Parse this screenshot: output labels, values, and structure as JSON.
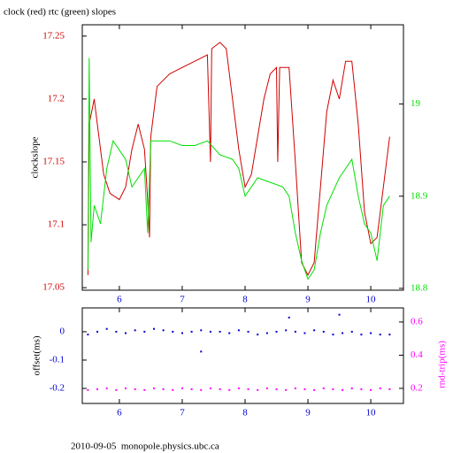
{
  "chart_data": [
    {
      "type": "line",
      "title": "clock (red) rtc (green) slopes",
      "ylabel": "clockslope",
      "xlim": [
        5.41,
        10.52
      ],
      "xticks": [
        6,
        7,
        8,
        9,
        10
      ],
      "ylim": [
        17.048,
        17.259
      ],
      "yticks": [
        17.05,
        17.1,
        17.15,
        17.2,
        17.25
      ],
      "y2lim": [
        18.798,
        19.086
      ],
      "y2ticks": [
        18.8,
        18.9,
        19
      ],
      "series": [
        {
          "name": "clock",
          "color": "#d00000",
          "x": [
            5.5,
            5.52,
            5.6,
            5.65,
            5.75,
            5.85,
            6.0,
            6.1,
            6.2,
            6.3,
            6.4,
            6.45,
            6.48,
            6.5,
            6.6,
            6.8,
            7.0,
            7.2,
            7.4,
            7.45,
            7.47,
            7.6,
            7.7,
            7.8,
            7.9,
            8.0,
            8.1,
            8.2,
            8.3,
            8.4,
            8.5,
            8.52,
            8.55,
            8.7,
            8.8,
            8.9,
            9.0,
            9.1,
            9.2,
            9.3,
            9.4,
            9.5,
            9.6,
            9.7,
            9.8,
            9.9,
            10.0,
            10.1,
            10.2,
            10.3
          ],
          "values": [
            17.06,
            17.18,
            17.2,
            17.18,
            17.14,
            17.125,
            17.12,
            17.13,
            17.16,
            17.18,
            17.16,
            17.12,
            17.09,
            17.17,
            17.21,
            17.22,
            17.225,
            17.23,
            17.235,
            17.15,
            17.24,
            17.245,
            17.24,
            17.2,
            17.16,
            17.13,
            17.14,
            17.17,
            17.2,
            17.22,
            17.225,
            17.15,
            17.225,
            17.225,
            17.15,
            17.07,
            17.06,
            17.07,
            17.13,
            17.19,
            17.215,
            17.2,
            17.23,
            17.23,
            17.18,
            17.11,
            17.085,
            17.09,
            17.13,
            17.17
          ]
        },
        {
          "name": "rtc",
          "color": "#00e000",
          "axis": "y2",
          "x": [
            5.5,
            5.52,
            5.55,
            5.6,
            5.7,
            5.8,
            5.9,
            6.0,
            6.1,
            6.2,
            6.3,
            6.4,
            6.45,
            6.5,
            6.6,
            6.8,
            7.0,
            7.2,
            7.4,
            7.6,
            7.8,
            7.9,
            8.0,
            8.1,
            8.2,
            8.4,
            8.6,
            8.7,
            8.8,
            8.9,
            9.0,
            9.1,
            9.2,
            9.3,
            9.5,
            9.6,
            9.7,
            9.8,
            9.9,
            10.0,
            10.1,
            10.2,
            10.3
          ],
          "values": [
            18.82,
            19.05,
            18.85,
            18.89,
            18.87,
            18.93,
            18.96,
            18.95,
            18.94,
            18.91,
            18.92,
            18.93,
            18.86,
            18.96,
            18.96,
            18.96,
            18.955,
            18.955,
            18.96,
            18.945,
            18.94,
            18.93,
            18.9,
            18.91,
            18.92,
            18.915,
            18.91,
            18.9,
            18.86,
            18.83,
            18.81,
            18.82,
            18.86,
            18.89,
            18.92,
            18.93,
            18.94,
            18.9,
            18.87,
            18.86,
            18.83,
            18.89,
            18.9
          ]
        }
      ]
    },
    {
      "type": "scatter",
      "ylabel": "offset(ms)",
      "y2label": "rnd-trip(ms)",
      "xlim": [
        5.41,
        10.52
      ],
      "xticks": [
        6,
        7,
        8,
        9,
        10
      ],
      "ylim": [
        -0.253,
        0.084
      ],
      "yticks": [
        0,
        -0.1,
        -0.2
      ],
      "y2lim": [
        0.109,
        0.685
      ],
      "y2ticks": [
        0.2,
        0.4,
        0.6
      ],
      "series": [
        {
          "name": "offset",
          "color": "#0000d0",
          "x": [
            5.5,
            5.65,
            5.8,
            5.95,
            6.1,
            6.25,
            6.4,
            6.55,
            6.7,
            6.85,
            7.0,
            7.15,
            7.3,
            7.45,
            7.6,
            7.75,
            7.9,
            8.05,
            8.2,
            8.35,
            8.5,
            8.65,
            8.8,
            8.95,
            9.1,
            9.25,
            9.4,
            9.55,
            9.7,
            9.85,
            10.0,
            10.15,
            10.3,
            7.3,
            8.7,
            9.5
          ],
          "values": [
            -0.01,
            0.0,
            0.01,
            0.0,
            -0.005,
            0.005,
            0.0,
            0.01,
            0.005,
            0.0,
            -0.005,
            0.0,
            0.005,
            0.0,
            0.0,
            -0.005,
            0.005,
            0.0,
            -0.01,
            -0.005,
            0.0,
            0.005,
            0.0,
            -0.005,
            0.005,
            0.0,
            -0.01,
            -0.005,
            0.0,
            -0.01,
            -0.005,
            -0.01,
            -0.01,
            -0.07,
            0.05,
            0.06
          ]
        },
        {
          "name": "rnd-trip",
          "color": "#ff00ff",
          "axis": "y2",
          "x": [
            5.5,
            5.65,
            5.8,
            5.95,
            6.1,
            6.25,
            6.4,
            6.55,
            6.7,
            6.85,
            7.0,
            7.15,
            7.3,
            7.45,
            7.6,
            7.75,
            7.9,
            8.05,
            8.2,
            8.35,
            8.5,
            8.65,
            8.8,
            8.95,
            9.1,
            9.25,
            9.4,
            9.55,
            9.7,
            9.85,
            10.0,
            10.15,
            10.3
          ],
          "values": [
            0.19,
            0.195,
            0.2,
            0.19,
            0.2,
            0.195,
            0.19,
            0.2,
            0.195,
            0.19,
            0.2,
            0.195,
            0.19,
            0.2,
            0.195,
            0.19,
            0.2,
            0.195,
            0.19,
            0.2,
            0.195,
            0.19,
            0.2,
            0.195,
            0.19,
            0.2,
            0.195,
            0.19,
            0.2,
            0.195,
            0.19,
            0.2,
            0.195
          ]
        }
      ]
    }
  ],
  "footer": "2010-09-05  monopole.physics.ubc.ca"
}
